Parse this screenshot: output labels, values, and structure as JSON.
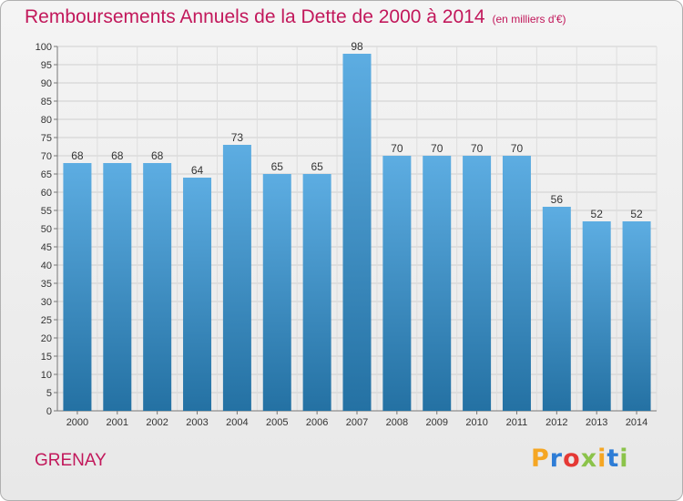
{
  "header": {
    "title": "Remboursements Annuels de la Dette de 2000 à 2014",
    "subtitle": "(en milliers d'€)"
  },
  "footer": {
    "commune": "GRENAY",
    "brand_letters": [
      "P",
      "r",
      "o",
      "x",
      "i",
      "t",
      "i"
    ],
    "brand_colors": [
      "#f5a623",
      "#2e7dd6",
      "#e53935",
      "#8bc34a",
      "#f5a623",
      "#2e7dd6",
      "#8bc34a"
    ]
  },
  "chart_data": {
    "type": "bar",
    "categories": [
      "2000",
      "2001",
      "2002",
      "2003",
      "2004",
      "2005",
      "2006",
      "2007",
      "2008",
      "2009",
      "2010",
      "2011",
      "2012",
      "2013",
      "2014"
    ],
    "values": [
      68,
      68,
      68,
      64,
      73,
      65,
      65,
      98,
      70,
      70,
      70,
      70,
      56,
      52,
      52
    ],
    "ylim": [
      0,
      100
    ],
    "yticks": [
      0,
      5,
      10,
      15,
      20,
      25,
      30,
      35,
      40,
      45,
      50,
      55,
      60,
      65,
      70,
      75,
      80,
      85,
      90,
      95,
      100
    ],
    "grid": true,
    "bar_color_top": "#5dade2",
    "bar_color_bottom": "#2471a3",
    "title_color": "#c2185b"
  }
}
